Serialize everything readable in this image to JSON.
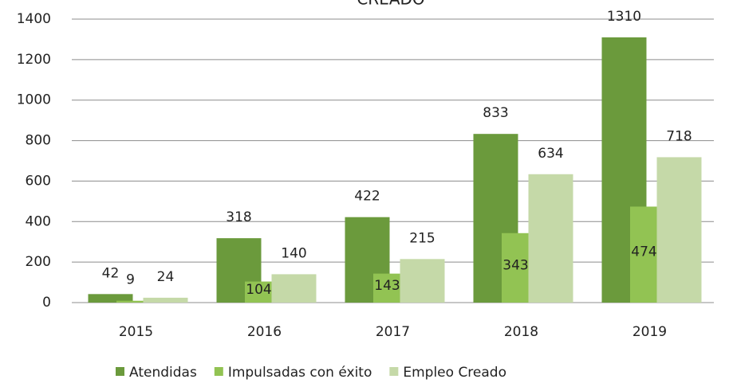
{
  "chart_data": {
    "type": "bar",
    "title": "CREADO",
    "categories": [
      "2015",
      "2016",
      "2017",
      "2018",
      "2019"
    ],
    "series": [
      {
        "name": "Atendidas",
        "color": "#6b9a3c",
        "values": [
          42,
          318,
          422,
          833,
          1310
        ]
      },
      {
        "name": "Impulsadas con éxito",
        "color": "#92c353",
        "values": [
          9,
          104,
          143,
          343,
          474
        ]
      },
      {
        "name": "Empleo Creado",
        "color": "#c5d9a8",
        "values": [
          24,
          140,
          215,
          634,
          718
        ]
      }
    ],
    "ylim": [
      0,
      1400
    ],
    "yticks": [
      0,
      200,
      400,
      600,
      800,
      1000,
      1200,
      1400
    ],
    "grid": true,
    "legend": "bottom"
  }
}
